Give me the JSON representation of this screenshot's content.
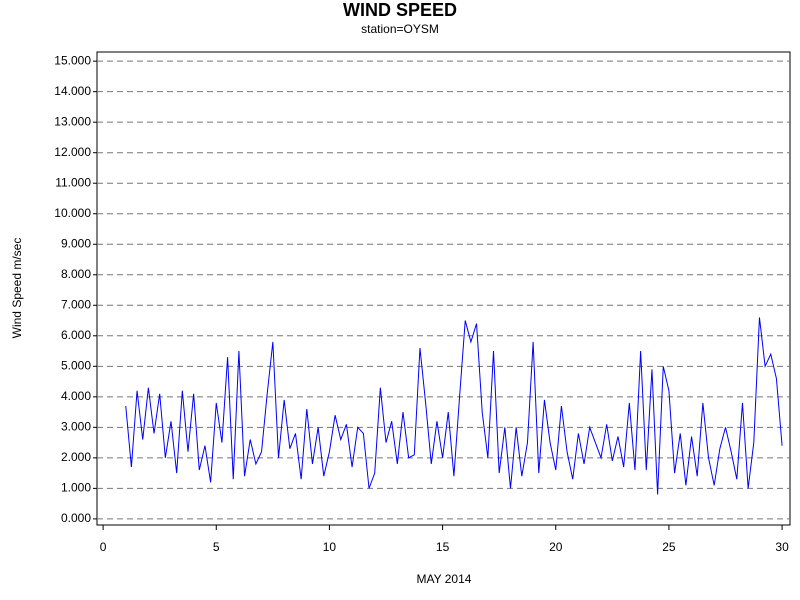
{
  "chart_data": {
    "type": "line",
    "title": "WIND SPEED",
    "subtitle": "station=OYSM",
    "x_label": "MAY 2014",
    "y_label": "Wind Speed m/sec",
    "xlim": [
      -0.27,
      30.35
    ],
    "ylim": [
      -0.2,
      15.3
    ],
    "xticks": [
      0,
      5,
      10,
      15,
      20,
      25,
      30
    ],
    "yticks": [
      {
        "value": 0,
        "label": "0.000"
      },
      {
        "value": 1,
        "label": "1.000"
      },
      {
        "value": 2,
        "label": "2.000"
      },
      {
        "value": 3,
        "label": "3.000"
      },
      {
        "value": 4,
        "label": "4.000"
      },
      {
        "value": 5,
        "label": "5.000"
      },
      {
        "value": 6,
        "label": "6.000"
      },
      {
        "value": 7,
        "label": "7.000"
      },
      {
        "value": 8,
        "label": "8.000"
      },
      {
        "value": 9,
        "label": "9.000"
      },
      {
        "value": 10,
        "label": "10.000"
      },
      {
        "value": 11,
        "label": "11.000"
      },
      {
        "value": 12,
        "label": "12.000"
      },
      {
        "value": 13,
        "label": "13.000"
      },
      {
        "value": 14,
        "label": "14.000"
      },
      {
        "value": 15,
        "label": "15.000"
      }
    ],
    "grid": true,
    "x": [
      1,
      1.25,
      1.5,
      1.75,
      2,
      2.25,
      2.5,
      2.75,
      3,
      3.25,
      3.5,
      3.75,
      4,
      4.25,
      4.5,
      4.75,
      5,
      5.25,
      5.5,
      5.75,
      6,
      6.25,
      6.5,
      6.75,
      7,
      7.25,
      7.5,
      7.75,
      8,
      8.25,
      8.5,
      8.75,
      9,
      9.25,
      9.5,
      9.75,
      10,
      10.25,
      10.5,
      10.75,
      11,
      11.25,
      11.5,
      11.75,
      12,
      12.25,
      12.5,
      12.75,
      13,
      13.25,
      13.5,
      13.75,
      14,
      14.25,
      14.5,
      14.75,
      15,
      15.25,
      15.5,
      15.75,
      16,
      16.25,
      16.5,
      16.75,
      17,
      17.25,
      17.5,
      17.75,
      18,
      18.25,
      18.5,
      18.75,
      19,
      19.25,
      19.5,
      19.75,
      20,
      20.25,
      20.5,
      20.75,
      21,
      21.25,
      21.5,
      21.75,
      22,
      22.25,
      22.5,
      22.75,
      23,
      23.25,
      23.5,
      23.75,
      24,
      24.25,
      24.5,
      24.75,
      25,
      25.25,
      25.5,
      25.75,
      26,
      26.25,
      26.5,
      26.75,
      27,
      27.25,
      27.5,
      27.75,
      28,
      28.25,
      28.5,
      28.75,
      29,
      29.25,
      29.5,
      29.75,
      30
    ],
    "series": [
      {
        "name": "Wind Speed",
        "color": "#0000ff",
        "values": [
          3.7,
          1.7,
          4.2,
          2.6,
          4.3,
          2.8,
          4.1,
          2.0,
          3.2,
          1.5,
          4.2,
          2.2,
          4.1,
          1.6,
          2.4,
          1.2,
          3.8,
          2.5,
          5.3,
          1.3,
          5.5,
          1.4,
          2.6,
          1.8,
          2.2,
          4.1,
          5.8,
          2.0,
          3.9,
          2.3,
          2.8,
          1.3,
          3.6,
          1.8,
          3.0,
          1.4,
          2.2,
          3.4,
          2.6,
          3.1,
          1.7,
          3.0,
          2.8,
          1.0,
          1.5,
          4.3,
          2.5,
          3.2,
          1.8,
          3.5,
          2.0,
          2.1,
          5.6,
          3.8,
          1.8,
          3.2,
          2.0,
          3.5,
          1.4,
          4.0,
          6.5,
          5.8,
          6.4,
          3.5,
          2.0,
          5.5,
          1.5,
          3.0,
          1.0,
          3.0,
          1.4,
          2.5,
          5.8,
          1.5,
          3.9,
          2.5,
          1.6,
          3.7,
          2.2,
          1.3,
          2.8,
          1.8,
          3.0,
          2.5,
          2.0,
          3.1,
          1.9,
          2.7,
          1.7,
          3.8,
          1.6,
          5.5,
          1.6,
          4.9,
          0.8,
          5.0,
          4.2,
          1.5,
          2.8,
          1.1,
          2.7,
          1.4,
          3.8,
          2.0,
          1.1,
          2.3,
          3.0,
          2.2,
          1.3,
          3.8,
          1.0,
          2.5,
          6.6,
          5.0,
          5.4,
          4.6,
          2.4
        ]
      }
    ]
  }
}
